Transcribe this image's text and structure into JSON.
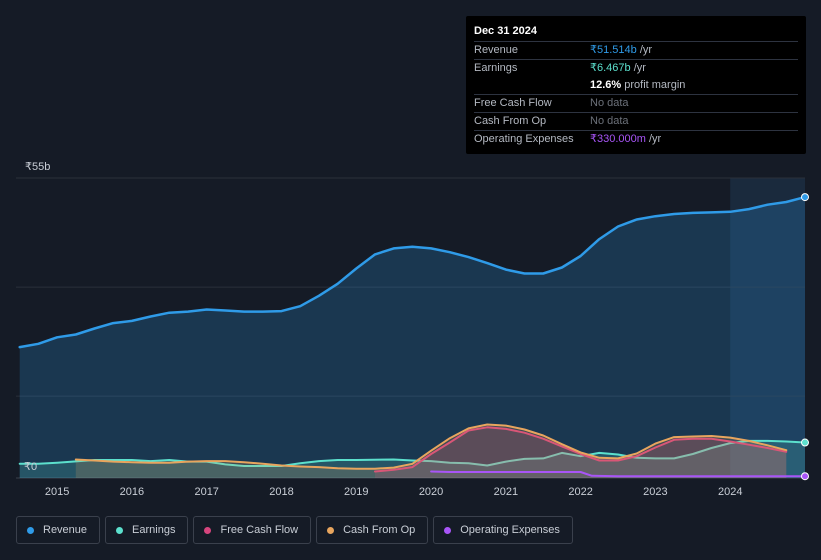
{
  "tooltip": {
    "date": "Dec 31 2024",
    "revenue_label": "Revenue",
    "revenue_value": "₹51.514b",
    "revenue_unit": " /yr",
    "earnings_label": "Earnings",
    "earnings_value": "₹6.467b",
    "earnings_unit": " /yr",
    "profit_margin_value": "12.6%",
    "profit_margin_text": " profit margin",
    "fcf_label": "Free Cash Flow",
    "fcf_value": "No data",
    "cfo_label": "Cash From Op",
    "cfo_value": "No data",
    "opex_label": "Operating Expenses",
    "opex_value": "₹330.000m",
    "opex_unit": " /yr"
  },
  "legend": [
    {
      "label": "Revenue",
      "color": "#2f9be8"
    },
    {
      "label": "Earnings",
      "color": "#5ce0cd"
    },
    {
      "label": "Free Cash Flow",
      "color": "#d6457d"
    },
    {
      "label": "Cash From Op",
      "color": "#e8a55e"
    },
    {
      "label": "Operating Expenses",
      "color": "#a855f7"
    }
  ],
  "chart_data": {
    "type": "area",
    "y_top_label": "₹55b",
    "y_bottom_label": "₹0",
    "ylim": [
      0,
      55
    ],
    "xlim": [
      2014.45,
      2025.0
    ],
    "x_ticks": [
      "2015",
      "2016",
      "2017",
      "2018",
      "2019",
      "2020",
      "2021",
      "2022",
      "2023",
      "2024"
    ],
    "highlight_start": 2024.0,
    "series": [
      {
        "name": "Revenue",
        "color": "#2f9be8",
        "fill": true,
        "points": [
          [
            2014.5,
            24
          ],
          [
            2014.75,
            24.6
          ],
          [
            2015.0,
            25.8
          ],
          [
            2015.25,
            26.3
          ],
          [
            2015.5,
            27.4
          ],
          [
            2015.75,
            28.4
          ],
          [
            2016.0,
            28.8
          ],
          [
            2016.25,
            29.6
          ],
          [
            2016.5,
            30.3
          ],
          [
            2016.75,
            30.5
          ],
          [
            2017.0,
            30.9
          ],
          [
            2017.25,
            30.7
          ],
          [
            2017.5,
            30.5
          ],
          [
            2017.75,
            30.5
          ],
          [
            2018.0,
            30.6
          ],
          [
            2018.25,
            31.5
          ],
          [
            2018.5,
            33.4
          ],
          [
            2018.75,
            35.6
          ],
          [
            2019.0,
            38.4
          ],
          [
            2019.25,
            41.0
          ],
          [
            2019.5,
            42.1
          ],
          [
            2019.75,
            42.4
          ],
          [
            2020.0,
            42.1
          ],
          [
            2020.25,
            41.4
          ],
          [
            2020.5,
            40.5
          ],
          [
            2020.75,
            39.4
          ],
          [
            2021.0,
            38.2
          ],
          [
            2021.25,
            37.5
          ],
          [
            2021.5,
            37.5
          ],
          [
            2021.75,
            38.6
          ],
          [
            2022.0,
            40.7
          ],
          [
            2022.25,
            43.8
          ],
          [
            2022.5,
            46.1
          ],
          [
            2022.75,
            47.4
          ],
          [
            2023.0,
            48.0
          ],
          [
            2023.25,
            48.4
          ],
          [
            2023.5,
            48.6
          ],
          [
            2023.75,
            48.7
          ],
          [
            2024.0,
            48.8
          ],
          [
            2024.25,
            49.3
          ],
          [
            2024.5,
            50.1
          ],
          [
            2024.75,
            50.6
          ],
          [
            2025.0,
            51.5
          ]
        ]
      },
      {
        "name": "Earnings",
        "color": "#5ce0cd",
        "fill": true,
        "points": [
          [
            2014.5,
            2.6
          ],
          [
            2014.75,
            2.6
          ],
          [
            2015.0,
            2.8
          ],
          [
            2015.5,
            3.3
          ],
          [
            2016.0,
            3.3
          ],
          [
            2016.25,
            3.1
          ],
          [
            2016.5,
            3.3
          ],
          [
            2016.75,
            3.0
          ],
          [
            2017.0,
            3.0
          ],
          [
            2017.25,
            2.5
          ],
          [
            2017.5,
            2.2
          ],
          [
            2017.75,
            2.2
          ],
          [
            2018.0,
            2.2
          ],
          [
            2018.25,
            2.7
          ],
          [
            2018.5,
            3.1
          ],
          [
            2018.75,
            3.3
          ],
          [
            2019.0,
            3.3
          ],
          [
            2019.5,
            3.4
          ],
          [
            2019.75,
            3.2
          ],
          [
            2020.0,
            3.1
          ],
          [
            2020.25,
            2.8
          ],
          [
            2020.5,
            2.7
          ],
          [
            2020.75,
            2.3
          ],
          [
            2021.0,
            3.0
          ],
          [
            2021.25,
            3.5
          ],
          [
            2021.5,
            3.6
          ],
          [
            2021.75,
            4.6
          ],
          [
            2022.0,
            4.0
          ],
          [
            2022.25,
            4.6
          ],
          [
            2022.5,
            4.3
          ],
          [
            2022.75,
            3.7
          ],
          [
            2023.0,
            3.6
          ],
          [
            2023.25,
            3.6
          ],
          [
            2023.5,
            4.4
          ],
          [
            2023.75,
            5.5
          ],
          [
            2024.0,
            6.4
          ],
          [
            2024.25,
            6.8
          ],
          [
            2024.5,
            6.8
          ],
          [
            2024.75,
            6.7
          ],
          [
            2025.0,
            6.5
          ]
        ]
      },
      {
        "name": "Free Cash Flow",
        "color": "#d6457d",
        "fill": true,
        "points": [
          [
            2019.25,
            1.2
          ],
          [
            2019.5,
            1.5
          ],
          [
            2019.75,
            2.0
          ],
          [
            2020.0,
            4.4
          ],
          [
            2020.25,
            6.5
          ],
          [
            2020.5,
            8.7
          ],
          [
            2020.75,
            9.3
          ],
          [
            2021.0,
            9.0
          ],
          [
            2021.25,
            8.3
          ],
          [
            2021.5,
            7.2
          ],
          [
            2021.75,
            5.8
          ],
          [
            2022.0,
            4.4
          ],
          [
            2022.25,
            3.2
          ],
          [
            2022.5,
            3.2
          ],
          [
            2022.75,
            4.0
          ],
          [
            2023.0,
            5.6
          ],
          [
            2023.25,
            7.0
          ],
          [
            2023.5,
            7.2
          ],
          [
            2023.75,
            7.2
          ],
          [
            2024.0,
            6.7
          ],
          [
            2024.25,
            6.1
          ],
          [
            2024.5,
            5.5
          ],
          [
            2024.75,
            4.8
          ]
        ]
      },
      {
        "name": "Cash From Op",
        "color": "#e8a55e",
        "fill": true,
        "points": [
          [
            2015.25,
            3.4
          ],
          [
            2015.5,
            3.2
          ],
          [
            2015.75,
            3.0
          ],
          [
            2016.0,
            2.9
          ],
          [
            2016.25,
            2.8
          ],
          [
            2016.5,
            2.8
          ],
          [
            2016.75,
            3.0
          ],
          [
            2017.0,
            3.1
          ],
          [
            2017.25,
            3.1
          ],
          [
            2017.5,
            2.9
          ],
          [
            2017.75,
            2.6
          ],
          [
            2018.0,
            2.3
          ],
          [
            2018.25,
            2.1
          ],
          [
            2018.5,
            2.0
          ],
          [
            2018.75,
            1.8
          ],
          [
            2019.0,
            1.7
          ],
          [
            2019.25,
            1.7
          ],
          [
            2019.5,
            1.9
          ],
          [
            2019.75,
            2.6
          ],
          [
            2020.0,
            5.0
          ],
          [
            2020.25,
            7.3
          ],
          [
            2020.5,
            9.1
          ],
          [
            2020.75,
            9.8
          ],
          [
            2021.0,
            9.6
          ],
          [
            2021.25,
            8.9
          ],
          [
            2021.5,
            7.8
          ],
          [
            2021.75,
            6.2
          ],
          [
            2022.0,
            4.7
          ],
          [
            2022.25,
            3.7
          ],
          [
            2022.5,
            3.6
          ],
          [
            2022.75,
            4.5
          ],
          [
            2023.0,
            6.3
          ],
          [
            2023.25,
            7.5
          ],
          [
            2023.5,
            7.6
          ],
          [
            2023.75,
            7.7
          ],
          [
            2024.0,
            7.4
          ],
          [
            2024.25,
            6.8
          ],
          [
            2024.5,
            6.0
          ],
          [
            2024.75,
            5.1
          ]
        ]
      },
      {
        "name": "Operating Expenses",
        "color": "#a855f7",
        "fill": false,
        "points": [
          [
            2020.0,
            1.2
          ],
          [
            2020.25,
            1.1
          ],
          [
            2021.0,
            1.1
          ],
          [
            2021.5,
            1.1
          ],
          [
            2022.0,
            1.1
          ],
          [
            2022.15,
            0.4
          ],
          [
            2022.5,
            0.33
          ],
          [
            2023.0,
            0.33
          ],
          [
            2024.0,
            0.33
          ],
          [
            2025.0,
            0.33
          ]
        ]
      }
    ]
  }
}
